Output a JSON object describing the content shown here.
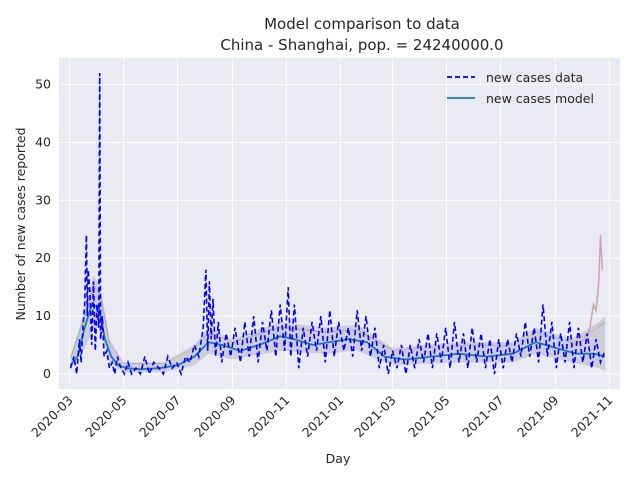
{
  "chart_data": {
    "type": "line",
    "title": "Model comparison to data",
    "subtitle": "China - Shanghai, pop. = 24240000.0",
    "xlabel": "Day",
    "ylabel": "Number of new cases reported",
    "ylim": [
      -2.6,
      54.6
    ],
    "yticks": [
      0,
      10,
      20,
      30,
      40,
      50
    ],
    "xlim": [
      "2020-02-18",
      "2021-11-13"
    ],
    "xticks": [
      "2020-03",
      "2020-05",
      "2020-07",
      "2020-09",
      "2020-11",
      "2021-01",
      "2021-03",
      "2021-05",
      "2021-07",
      "2021-09",
      "2021-11"
    ],
    "grid": true,
    "legend_position": "top-right",
    "colors": {
      "background": "#eaeaf2",
      "data_line": "#0000ff",
      "model_line": "#1f77b4",
      "ensemble": [
        "#ff7f0e",
        "#2ca02c",
        "#d62728",
        "#9467bd",
        "#8c564b",
        "#e377c2",
        "#7f7f7f",
        "#bcbd22",
        "#17becf"
      ]
    },
    "series": [
      {
        "name": "new cases data",
        "style": "dashed",
        "points": [
          [
            "2020-03-02",
            1
          ],
          [
            "2020-03-06",
            3
          ],
          [
            "2020-03-09",
            0
          ],
          [
            "2020-03-12",
            6
          ],
          [
            "2020-03-14",
            2
          ],
          [
            "2020-03-16",
            8
          ],
          [
            "2020-03-18",
            12
          ],
          [
            "2020-03-20",
            24
          ],
          [
            "2020-03-21",
            10
          ],
          [
            "2020-03-22",
            18
          ],
          [
            "2020-03-24",
            14
          ],
          [
            "2020-03-26",
            5
          ],
          [
            "2020-03-28",
            16
          ],
          [
            "2020-03-30",
            4
          ],
          [
            "2020-04-01",
            12
          ],
          [
            "2020-04-03",
            8
          ],
          [
            "2020-04-04",
            52
          ],
          [
            "2020-04-05",
            6
          ],
          [
            "2020-04-07",
            10
          ],
          [
            "2020-04-09",
            3
          ],
          [
            "2020-04-12",
            4
          ],
          [
            "2020-04-15",
            1
          ],
          [
            "2020-04-18",
            2
          ],
          [
            "2020-04-21",
            0
          ],
          [
            "2020-04-24",
            3
          ],
          [
            "2020-04-28",
            1
          ],
          [
            "2020-05-02",
            0
          ],
          [
            "2020-05-06",
            2
          ],
          [
            "2020-05-10",
            0
          ],
          [
            "2020-05-15",
            1
          ],
          [
            "2020-05-20",
            0
          ],
          [
            "2020-05-25",
            3
          ],
          [
            "2020-05-30",
            0
          ],
          [
            "2020-06-04",
            2
          ],
          [
            "2020-06-10",
            1
          ],
          [
            "2020-06-15",
            0
          ],
          [
            "2020-06-20",
            3
          ],
          [
            "2020-06-25",
            1
          ],
          [
            "2020-06-30",
            2
          ],
          [
            "2020-07-05",
            0
          ],
          [
            "2020-07-10",
            3
          ],
          [
            "2020-07-15",
            2
          ],
          [
            "2020-07-20",
            5
          ],
          [
            "2020-07-25",
            3
          ],
          [
            "2020-07-30",
            8
          ],
          [
            "2020-08-02",
            18
          ],
          [
            "2020-08-04",
            4
          ],
          [
            "2020-08-06",
            16
          ],
          [
            "2020-08-08",
            6
          ],
          [
            "2020-08-10",
            13
          ],
          [
            "2020-08-13",
            3
          ],
          [
            "2020-08-16",
            9
          ],
          [
            "2020-08-20",
            2
          ],
          [
            "2020-08-25",
            7
          ],
          [
            "2020-08-30",
            3
          ],
          [
            "2020-09-04",
            8
          ],
          [
            "2020-09-10",
            2
          ],
          [
            "2020-09-15",
            9
          ],
          [
            "2020-09-20",
            3
          ],
          [
            "2020-09-25",
            10
          ],
          [
            "2020-09-30",
            2
          ],
          [
            "2020-10-05",
            9
          ],
          [
            "2020-10-10",
            4
          ],
          [
            "2020-10-15",
            11
          ],
          [
            "2020-10-20",
            3
          ],
          [
            "2020-10-25",
            12
          ],
          [
            "2020-10-30",
            4
          ],
          [
            "2020-11-03",
            15
          ],
          [
            "2020-11-06",
            3
          ],
          [
            "2020-11-10",
            12
          ],
          [
            "2020-11-15",
            1
          ],
          [
            "2020-11-20",
            8
          ],
          [
            "2020-11-25",
            3
          ],
          [
            "2020-11-30",
            9
          ],
          [
            "2020-12-05",
            4
          ],
          [
            "2020-12-10",
            10
          ],
          [
            "2020-12-15",
            2
          ],
          [
            "2020-12-20",
            11
          ],
          [
            "2020-12-25",
            3
          ],
          [
            "2020-12-30",
            9
          ],
          [
            "2021-01-05",
            4
          ],
          [
            "2021-01-10",
            8
          ],
          [
            "2021-01-15",
            3
          ],
          [
            "2021-01-20",
            11
          ],
          [
            "2021-01-25",
            4
          ],
          [
            "2021-01-30",
            10
          ],
          [
            "2021-02-04",
            3
          ],
          [
            "2021-02-09",
            8
          ],
          [
            "2021-02-14",
            1
          ],
          [
            "2021-02-19",
            5
          ],
          [
            "2021-02-24",
            0
          ],
          [
            "2021-03-01",
            4
          ],
          [
            "2021-03-06",
            1
          ],
          [
            "2021-03-11",
            5
          ],
          [
            "2021-03-16",
            0
          ],
          [
            "2021-03-21",
            5
          ],
          [
            "2021-03-26",
            1
          ],
          [
            "2021-03-31",
            6
          ],
          [
            "2021-04-05",
            2
          ],
          [
            "2021-04-10",
            7
          ],
          [
            "2021-04-15",
            1
          ],
          [
            "2021-04-20",
            7
          ],
          [
            "2021-04-25",
            2
          ],
          [
            "2021-04-30",
            8
          ],
          [
            "2021-05-05",
            1
          ],
          [
            "2021-05-10",
            9
          ],
          [
            "2021-05-15",
            2
          ],
          [
            "2021-05-20",
            7
          ],
          [
            "2021-05-25",
            1
          ],
          [
            "2021-05-30",
            8
          ],
          [
            "2021-06-04",
            2
          ],
          [
            "2021-06-09",
            7
          ],
          [
            "2021-06-14",
            1
          ],
          [
            "2021-06-19",
            6
          ],
          [
            "2021-06-24",
            0
          ],
          [
            "2021-06-29",
            6
          ],
          [
            "2021-07-04",
            1
          ],
          [
            "2021-07-09",
            6
          ],
          [
            "2021-07-14",
            2
          ],
          [
            "2021-07-19",
            7
          ],
          [
            "2021-07-24",
            3
          ],
          [
            "2021-07-29",
            9
          ],
          [
            "2021-08-03",
            3
          ],
          [
            "2021-08-08",
            8
          ],
          [
            "2021-08-13",
            2
          ],
          [
            "2021-08-18",
            12
          ],
          [
            "2021-08-23",
            3
          ],
          [
            "2021-08-28",
            9
          ],
          [
            "2021-09-02",
            1
          ],
          [
            "2021-09-07",
            7
          ],
          [
            "2021-09-12",
            2
          ],
          [
            "2021-09-17",
            9
          ],
          [
            "2021-09-22",
            1
          ],
          [
            "2021-09-27",
            8
          ],
          [
            "2021-10-02",
            2
          ],
          [
            "2021-10-07",
            7
          ],
          [
            "2021-10-12",
            1
          ],
          [
            "2021-10-17",
            6
          ],
          [
            "2021-10-22",
            2
          ],
          [
            "2021-10-27",
            4
          ]
        ]
      },
      {
        "name": "new cases model",
        "style": "solid",
        "points": [
          [
            "2020-03-02",
            1.5
          ],
          [
            "2020-03-10",
            3
          ],
          [
            "2020-03-18",
            8
          ],
          [
            "2020-03-26",
            12
          ],
          [
            "2020-04-03",
            11.5
          ],
          [
            "2020-04-10",
            6
          ],
          [
            "2020-04-17",
            3
          ],
          [
            "2020-04-25",
            1.5
          ],
          [
            "2020-05-05",
            1
          ],
          [
            "2020-05-20",
            0.8
          ],
          [
            "2020-06-10",
            1
          ],
          [
            "2020-07-01",
            1.5
          ],
          [
            "2020-07-20",
            3
          ],
          [
            "2020-08-05",
            5.5
          ],
          [
            "2020-08-20",
            5
          ],
          [
            "2020-09-10",
            4
          ],
          [
            "2020-10-01",
            5
          ],
          [
            "2020-10-25",
            6.5
          ],
          [
            "2020-11-10",
            6
          ],
          [
            "2020-12-01",
            5
          ],
          [
            "2020-12-20",
            5.5
          ],
          [
            "2021-01-10",
            6
          ],
          [
            "2021-01-31",
            5.5
          ],
          [
            "2021-02-20",
            3
          ],
          [
            "2021-03-15",
            2.5
          ],
          [
            "2021-04-15",
            3
          ],
          [
            "2021-05-15",
            3.5
          ],
          [
            "2021-06-15",
            3
          ],
          [
            "2021-07-15",
            3.5
          ],
          [
            "2021-08-10",
            5.5
          ],
          [
            "2021-09-01",
            4.5
          ],
          [
            "2021-09-25",
            3.5
          ],
          [
            "2021-10-15",
            3.5
          ],
          [
            "2021-10-27",
            3
          ]
        ]
      }
    ],
    "ensemble_band": {
      "upper": [
        [
          "2020-03-02",
          3
        ],
        [
          "2020-03-20",
          12
        ],
        [
          "2020-03-28",
          17
        ],
        [
          "2020-04-05",
          15
        ],
        [
          "2020-04-15",
          6
        ],
        [
          "2020-05-01",
          2
        ],
        [
          "2020-06-15",
          2
        ],
        [
          "2020-07-20",
          5
        ],
        [
          "2020-08-05",
          8
        ],
        [
          "2020-09-01",
          6
        ],
        [
          "2020-10-25",
          9
        ],
        [
          "2020-12-15",
          8
        ],
        [
          "2021-01-20",
          8.5
        ],
        [
          "2021-03-01",
          4.5
        ],
        [
          "2021-05-15",
          5.5
        ],
        [
          "2021-07-15",
          5.5
        ],
        [
          "2021-08-10",
          8
        ],
        [
          "2021-09-20",
          6
        ],
        [
          "2021-10-20",
          9
        ],
        [
          "2021-10-27",
          10
        ]
      ],
      "lower": [
        [
          "2020-03-02",
          0.8
        ],
        [
          "2020-03-20",
          5
        ],
        [
          "2020-03-28",
          8
        ],
        [
          "2020-04-05",
          8
        ],
        [
          "2020-04-15",
          2
        ],
        [
          "2020-05-01",
          0.3
        ],
        [
          "2020-06-15",
          0.3
        ],
        [
          "2020-07-20",
          1.5
        ],
        [
          "2020-08-05",
          3.5
        ],
        [
          "2020-09-01",
          2.5
        ],
        [
          "2020-10-25",
          4
        ],
        [
          "2020-12-15",
          3.5
        ],
        [
          "2021-01-20",
          4
        ],
        [
          "2021-03-01",
          1.5
        ],
        [
          "2021-05-15",
          2
        ],
        [
          "2021-07-15",
          2
        ],
        [
          "2021-08-10",
          3.5
        ],
        [
          "2021-09-20",
          2
        ],
        [
          "2021-10-20",
          1
        ],
        [
          "2021-10-27",
          0.5
        ]
      ]
    },
    "outlier_trace": [
      [
        "2021-09-20",
        5
      ],
      [
        "2021-10-05",
        6
      ],
      [
        "2021-10-10",
        8
      ],
      [
        "2021-10-14",
        12
      ],
      [
        "2021-10-17",
        11
      ],
      [
        "2021-10-20",
        16
      ],
      [
        "2021-10-22",
        24
      ],
      [
        "2021-10-24",
        18
      ]
    ]
  }
}
